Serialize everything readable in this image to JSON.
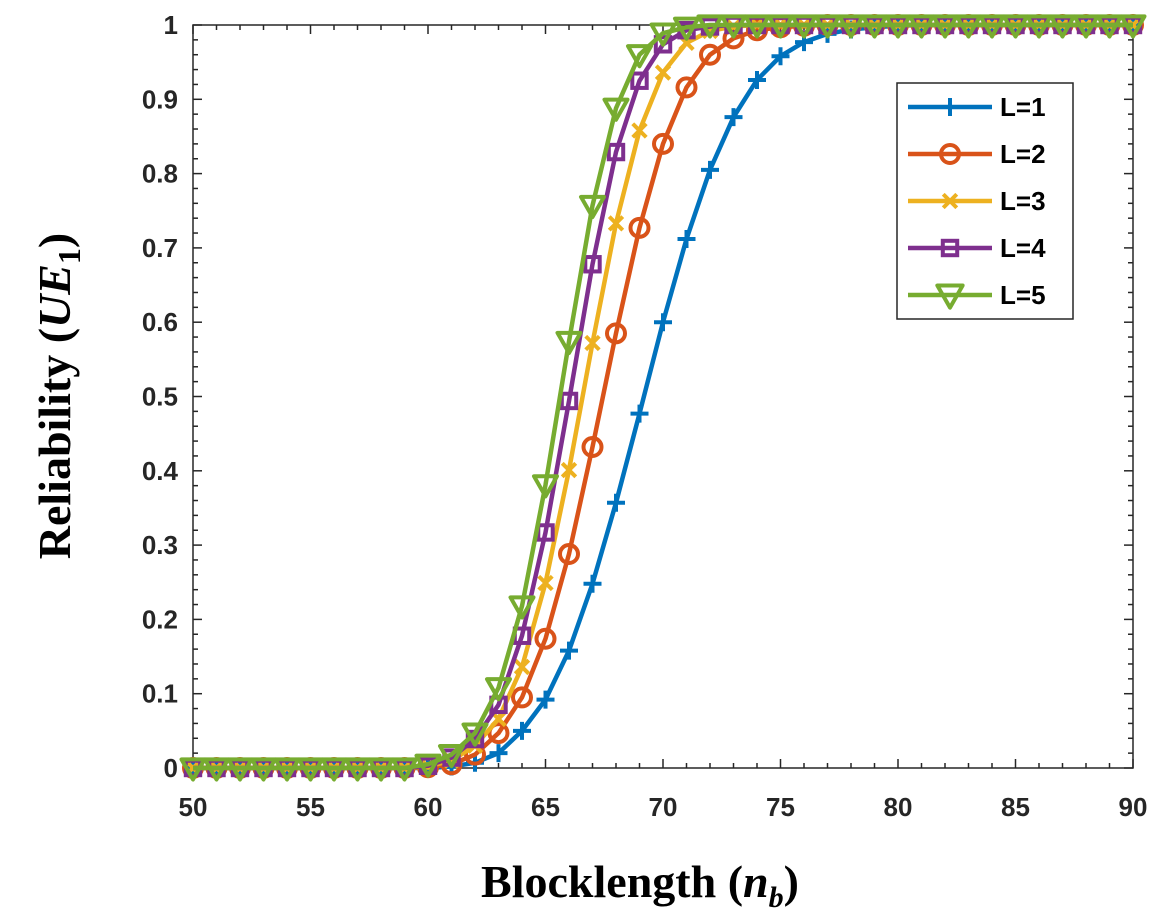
{
  "chart_data": {
    "type": "line",
    "title": "",
    "xlabel_text": "Blocklength (",
    "xlabel_var": "n",
    "xlabel_sub": "b",
    "xlabel_close": ")",
    "ylabel_text": "Reliability (",
    "ylabel_var": "UE",
    "ylabel_sub": "1",
    "ylabel_close": ")",
    "xlim": [
      50,
      90
    ],
    "ylim": [
      0,
      1
    ],
    "xticks": [
      50,
      55,
      60,
      65,
      70,
      75,
      80,
      85,
      90
    ],
    "yticks": [
      0,
      0.1,
      0.2,
      0.3,
      0.4,
      0.5,
      0.6,
      0.7,
      0.8,
      0.9,
      1
    ],
    "ytick_labels": [
      "0",
      "0.1",
      "0.2",
      "0.3",
      "0.4",
      "0.5",
      "0.6",
      "0.7",
      "0.8",
      "0.9",
      "1"
    ],
    "grid": false,
    "legend_position": "top-right",
    "x": [
      50,
      51,
      52,
      53,
      54,
      55,
      56,
      57,
      58,
      59,
      60,
      61,
      62,
      63,
      64,
      65,
      66,
      67,
      68,
      69,
      70,
      71,
      72,
      73,
      74,
      75,
      76,
      77,
      78,
      79,
      80,
      81,
      82,
      83,
      84,
      85,
      86,
      87,
      88,
      89,
      90
    ],
    "series": [
      {
        "name": "L=1",
        "color": "#0072BD",
        "marker": "plus",
        "values": [
          0,
          0,
          0,
          0,
          0,
          0,
          0,
          0,
          0,
          0,
          0,
          0.002,
          0.007,
          0.02,
          0.05,
          0.092,
          0.158,
          0.248,
          0.357,
          0.477,
          0.6,
          0.712,
          0.805,
          0.876,
          0.926,
          0.958,
          0.977,
          0.988,
          0.994,
          0.997,
          0.999,
          1,
          1,
          1,
          1,
          1,
          1,
          1,
          1,
          1,
          1
        ]
      },
      {
        "name": "L=2",
        "color": "#D95319",
        "marker": "circle",
        "values": [
          0,
          0,
          0,
          0,
          0,
          0,
          0,
          0,
          0,
          0,
          0.001,
          0.005,
          0.018,
          0.047,
          0.095,
          0.174,
          0.288,
          0.432,
          0.585,
          0.727,
          0.84,
          0.916,
          0.96,
          0.982,
          0.993,
          0.997,
          0.999,
          1,
          1,
          1,
          1,
          1,
          1,
          1,
          1,
          1,
          1,
          1,
          1,
          1,
          1
        ]
      },
      {
        "name": "L=3",
        "color": "#EDB120",
        "marker": "x",
        "values": [
          0,
          0,
          0,
          0,
          0,
          0,
          0,
          0,
          0,
          0,
          0.002,
          0.01,
          0.03,
          0.066,
          0.136,
          0.249,
          0.401,
          0.572,
          0.733,
          0.858,
          0.936,
          0.976,
          0.992,
          0.998,
          1,
          1,
          1,
          1,
          1,
          1,
          1,
          1,
          1,
          1,
          1,
          1,
          1,
          1,
          1,
          1,
          1
        ]
      },
      {
        "name": "L=4",
        "color": "#7E2F8E",
        "marker": "square",
        "values": [
          0,
          0,
          0,
          0,
          0,
          0,
          0,
          0,
          0,
          0,
          0.003,
          0.014,
          0.039,
          0.085,
          0.178,
          0.317,
          0.494,
          0.678,
          0.829,
          0.925,
          0.974,
          0.993,
          0.998,
          1,
          1,
          1,
          1,
          1,
          1,
          1,
          1,
          1,
          1,
          1,
          1,
          1,
          1,
          1,
          1,
          1,
          1
        ]
      },
      {
        "name": "L=5",
        "color": "#77AC30",
        "marker": "triangle-down",
        "values": [
          0,
          0,
          0,
          0,
          0,
          0,
          0,
          0,
          0,
          0,
          0.005,
          0.018,
          0.047,
          0.108,
          0.218,
          0.381,
          0.574,
          0.757,
          0.888,
          0.96,
          0.989,
          0.997,
          1,
          1,
          1,
          1,
          1,
          1,
          1,
          1,
          1,
          1,
          1,
          1,
          1,
          1,
          1,
          1,
          1,
          1,
          1
        ]
      }
    ]
  }
}
